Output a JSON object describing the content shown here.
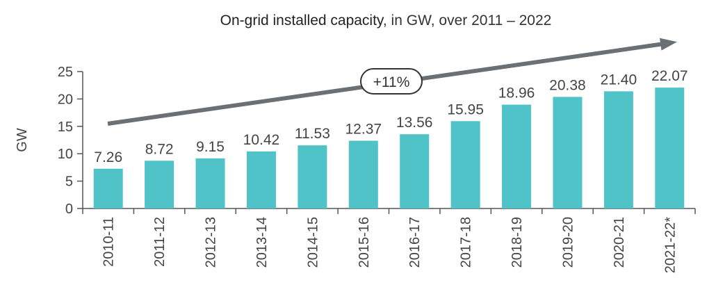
{
  "title": {
    "main": "On-grid installed capacity",
    "rest": ", in GW, over 2011 – 2022"
  },
  "colors": {
    "bar": "#4fc3c7",
    "axis": "#555555",
    "arrow": "#6b7075",
    "text": "#444444"
  },
  "chart_data": {
    "type": "bar",
    "title": "On-grid installed capacity, in GW, over 2011 – 2022",
    "xlabel": "",
    "ylabel": "GW",
    "ylim": [
      0,
      25
    ],
    "yticks": [
      "0",
      "5",
      "10",
      "15",
      "20",
      "25"
    ],
    "categories": [
      "2010-11",
      "2011-12",
      "2012-13",
      "2013-14",
      "2014-15",
      "2015-16",
      "2016-17",
      "2017-18",
      "2018-19",
      "2019-20",
      "2020-21",
      "2021-22*"
    ],
    "values": [
      7.26,
      8.72,
      9.15,
      10.42,
      11.53,
      12.37,
      13.56,
      15.95,
      18.96,
      20.38,
      21.4,
      22.07
    ],
    "value_labels": [
      "7.26",
      "8.72",
      "9.15",
      "10.42",
      "11.53",
      "12.37",
      "13.56",
      "15.95",
      "18.96",
      "20.38",
      "21.40",
      "22.07"
    ],
    "annotation": {
      "text": "+11%",
      "kind": "growth-arrow"
    }
  }
}
